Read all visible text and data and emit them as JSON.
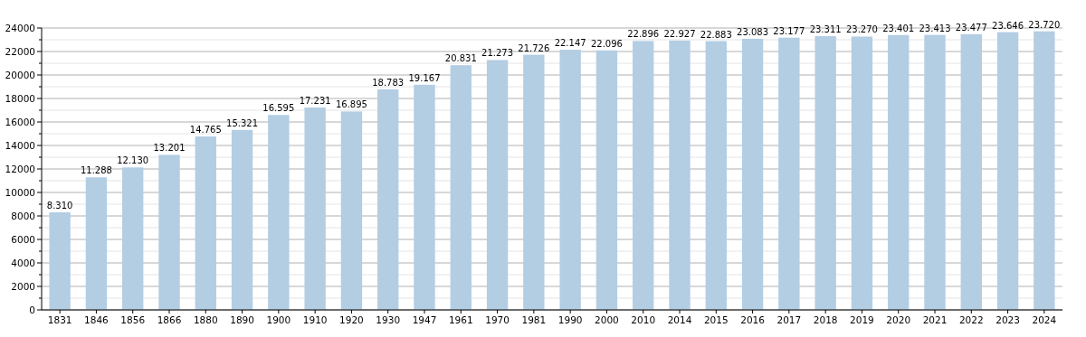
{
  "chart_data": {
    "type": "bar",
    "categories": [
      "1831",
      "1846",
      "1856",
      "1866",
      "1880",
      "1890",
      "1900",
      "1910",
      "1920",
      "1930",
      "1947",
      "1961",
      "1970",
      "1981",
      "1990",
      "2000",
      "2010",
      "2014",
      "2015",
      "2016",
      "2017",
      "2018",
      "2019",
      "2020",
      "2021",
      "2022",
      "2023",
      "2024"
    ],
    "values": [
      8310,
      11288,
      12130,
      13201,
      14765,
      15321,
      16595,
      17231,
      16895,
      18783,
      19167,
      20831,
      21273,
      21726,
      22147,
      22096,
      22896,
      22927,
      22883,
      23083,
      23177,
      23311,
      23270,
      23401,
      23413,
      23477,
      23646,
      23720
    ],
    "value_labels": [
      "8.310",
      "11.288",
      "12.130",
      "13.201",
      "14.765",
      "15.321",
      "16.595",
      "17.231",
      "16.895",
      "18.783",
      "19.167",
      "20.831",
      "21.273",
      "21.726",
      "22.147",
      "22.096",
      "22.896",
      "22.927",
      "22.883",
      "23.083",
      "23.177",
      "23.311",
      "23.270",
      "23.401",
      "23.413",
      "23.477",
      "23.646",
      "23.720"
    ],
    "color": "#b3cde3",
    "ylim": [
      0,
      24000
    ],
    "yticks": [
      0,
      {
        "value": 1000,
        "label": null
      },
      2000,
      {
        "value": 3000,
        "label": null
      },
      4000,
      {
        "value": 5000,
        "label": null
      },
      6000,
      {
        "value": 7000,
        "label": null
      },
      8000,
      {
        "value": 9000,
        "label": null
      },
      10000,
      {
        "value": 11000,
        "label": null
      },
      12000,
      {
        "value": 13000,
        "label": null
      },
      14000,
      {
        "value": 15000,
        "label": null
      },
      16000,
      {
        "value": 17000,
        "label": null
      },
      18000,
      {
        "value": 19000,
        "label": null
      },
      20000,
      {
        "value": 21000,
        "label": null
      },
      22000,
      {
        "value": 23000,
        "label": null
      },
      24000
    ],
    "grid": "y"
  }
}
